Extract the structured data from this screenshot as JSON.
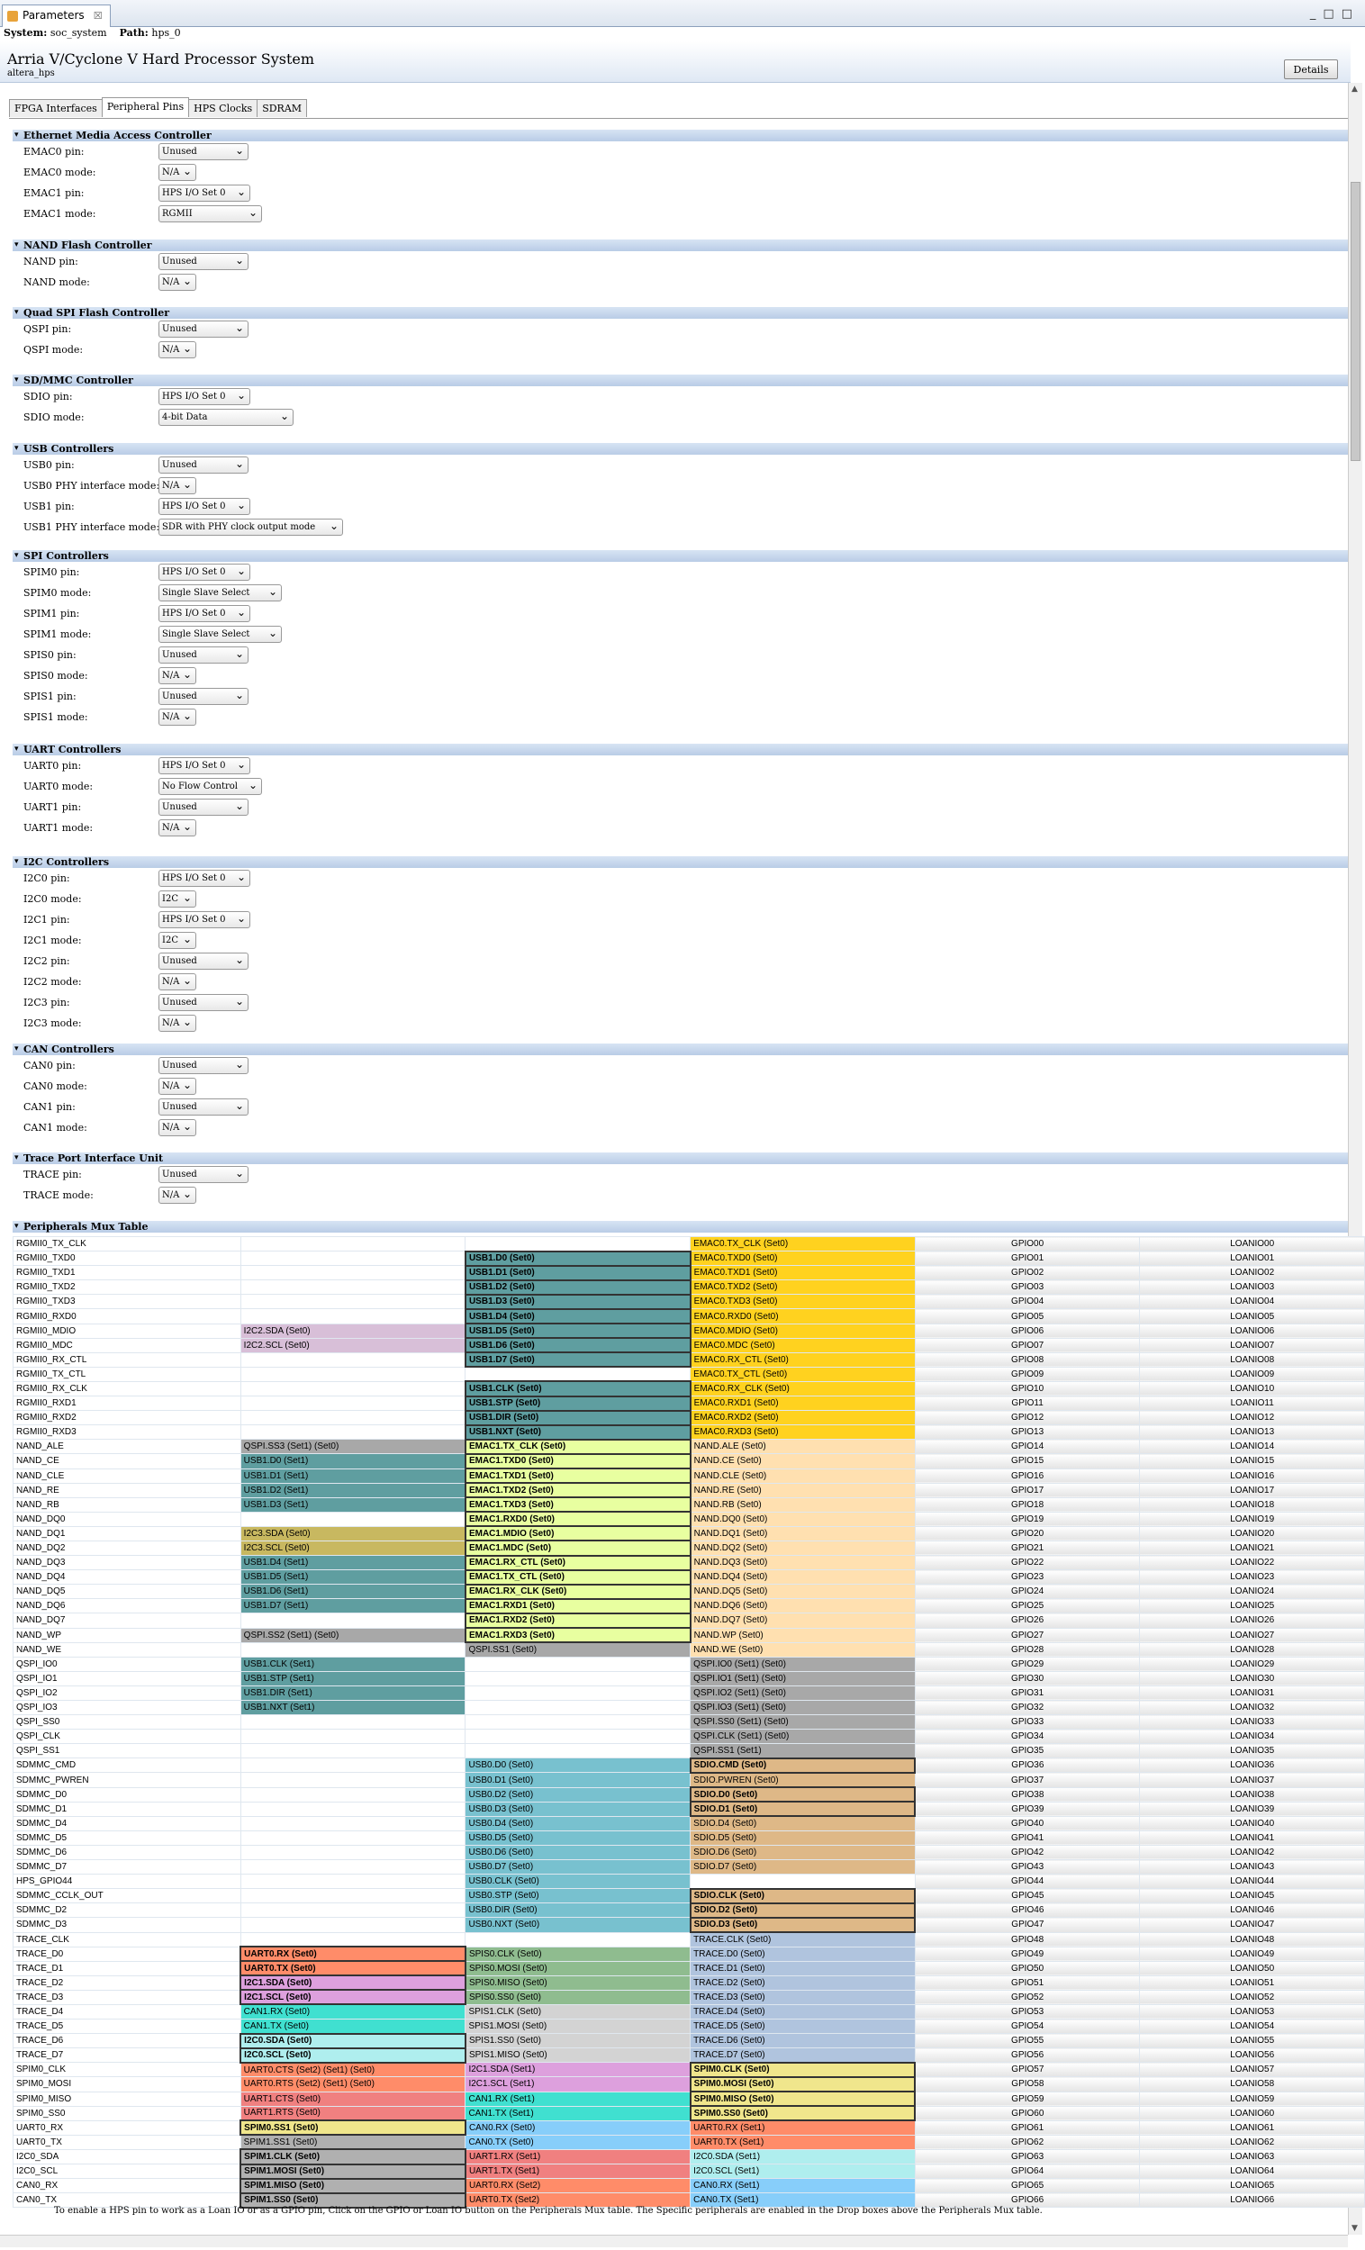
{
  "window": {
    "tab": "Parameters",
    "tab_close": "☒"
  },
  "path": {
    "system_label": "System:",
    "system": "soc_system",
    "path_label": "Path:",
    "path": "hps_0"
  },
  "header": {
    "title": "Arria V/Cyclone V Hard Processor System",
    "subtitle": "altera_hps",
    "details": "Details"
  },
  "tabs": [
    "FPGA Interfaces",
    "Peripheral Pins",
    "HPS Clocks",
    "SDRAM"
  ],
  "sections": [
    {
      "title": "Ethernet Media Access Controller",
      "fields": [
        [
          "EMAC0 pin:",
          "Unused",
          100
        ],
        [
          "EMAC0 mode:",
          "N/A",
          42
        ],
        [
          "EMAC1 pin:",
          "HPS I/O Set 0",
          102
        ],
        [
          "EMAC1 mode:",
          "RGMII",
          115
        ]
      ]
    },
    {
      "title": "NAND Flash Controller",
      "fields": [
        [
          "NAND pin:",
          "Unused",
          100
        ],
        [
          "NAND mode:",
          "N/A",
          42
        ]
      ]
    },
    {
      "title": "Quad SPI Flash Controller",
      "fields": [
        [
          "QSPI pin:",
          "Unused",
          100
        ],
        [
          "QSPI mode:",
          "N/A",
          42
        ]
      ]
    },
    {
      "title": "SD/MMC Controller",
      "fields": [
        [
          "SDIO pin:",
          "HPS I/O Set 0",
          102
        ],
        [
          "SDIO mode:",
          "4-bit Data",
          150
        ]
      ]
    },
    {
      "title": "USB Controllers",
      "fields": [
        [
          "USB0 pin:",
          "Unused",
          100
        ],
        [
          "USB0 PHY interface mode:",
          "N/A",
          42
        ],
        [
          "USB1 pin:",
          "HPS I/O Set 0",
          102
        ],
        [
          "USB1 PHY interface mode:",
          "SDR with PHY clock output mode",
          205
        ]
      ]
    },
    {
      "title": "SPI Controllers",
      "fields": [
        [
          "SPIM0 pin:",
          "HPS I/O Set 0",
          102
        ],
        [
          "SPIM0 mode:",
          "Single Slave Select",
          137
        ],
        [
          "SPIM1 pin:",
          "HPS I/O Set 0",
          102
        ],
        [
          "SPIM1 mode:",
          "Single Slave Select",
          137
        ],
        [
          "SPIS0 pin:",
          "Unused",
          100
        ],
        [
          "SPIS0 mode:",
          "N/A",
          42
        ],
        [
          "SPIS1 pin:",
          "Unused",
          100
        ],
        [
          "SPIS1 mode:",
          "N/A",
          42
        ]
      ]
    },
    {
      "title": "UART Controllers",
      "fields": [
        [
          "UART0 pin:",
          "HPS I/O Set 0",
          102
        ],
        [
          "UART0 mode:",
          "No Flow Control",
          115
        ],
        [
          "UART1 pin:",
          "Unused",
          100
        ],
        [
          "UART1 mode:",
          "N/A",
          42
        ]
      ]
    },
    {
      "title": "I2C Controllers",
      "fields": [
        [
          "I2C0 pin:",
          "HPS I/O Set 0",
          102
        ],
        [
          "I2C0 mode:",
          "I2C",
          42
        ],
        [
          "I2C1 pin:",
          "HPS I/O Set 0",
          102
        ],
        [
          "I2C1 mode:",
          "I2C",
          42
        ],
        [
          "I2C2 pin:",
          "Unused",
          100
        ],
        [
          "I2C2 mode:",
          "N/A",
          42
        ],
        [
          "I2C3 pin:",
          "Unused",
          100
        ],
        [
          "I2C3 mode:",
          "N/A",
          42
        ]
      ]
    },
    {
      "title": "CAN Controllers",
      "fields": [
        [
          "CAN0 pin:",
          "Unused",
          100
        ],
        [
          "CAN0 mode:",
          "N/A",
          42
        ],
        [
          "CAN1 pin:",
          "Unused",
          100
        ],
        [
          "CAN1 mode:",
          "N/A",
          42
        ]
      ]
    },
    {
      "title": "Trace Port Interface Unit",
      "fields": [
        [
          "TRACE pin:",
          "Unused",
          100
        ],
        [
          "TRACE mode:",
          "N/A",
          42
        ]
      ]
    }
  ],
  "mux_title": "Peripherals Mux Table",
  "mux_rows": [
    [
      "RGMII0_TX_CLK",
      "",
      "",
      "EMAC0.TX_CLK (Set0)",
      "GPIO00",
      "LOANIO00"
    ],
    [
      "RGMII0_TXD0",
      "",
      "USB1.D0 (Set0)",
      "EMAC0.TXD0 (Set0)",
      "GPIO01",
      "LOANIO01"
    ],
    [
      "RGMII0_TXD1",
      "",
      "USB1.D1 (Set0)",
      "EMAC0.TXD1 (Set0)",
      "GPIO02",
      "LOANIO02"
    ],
    [
      "RGMII0_TXD2",
      "",
      "USB1.D2 (Set0)",
      "EMAC0.TXD2 (Set0)",
      "GPIO03",
      "LOANIO03"
    ],
    [
      "RGMII0_TXD3",
      "",
      "USB1.D3 (Set0)",
      "EMAC0.TXD3 (Set0)",
      "GPIO04",
      "LOANIO04"
    ],
    [
      "RGMII0_RXD0",
      "",
      "USB1.D4 (Set0)",
      "EMAC0.RXD0 (Set0)",
      "GPIO05",
      "LOANIO05"
    ],
    [
      "RGMII0_MDIO",
      "I2C2.SDA (Set0)",
      "USB1.D5 (Set0)",
      "EMAC0.MDIO (Set0)",
      "GPIO06",
      "LOANIO06"
    ],
    [
      "RGMII0_MDC",
      "I2C2.SCL (Set0)",
      "USB1.D6 (Set0)",
      "EMAC0.MDC (Set0)",
      "GPIO07",
      "LOANIO07"
    ],
    [
      "RGMII0_RX_CTL",
      "",
      "USB1.D7 (Set0)",
      "EMAC0.RX_CTL (Set0)",
      "GPIO08",
      "LOANIO08"
    ],
    [
      "RGMII0_TX_CTL",
      "",
      "",
      "EMAC0.TX_CTL (Set0)",
      "GPIO09",
      "LOANIO09"
    ],
    [
      "RGMII0_RX_CLK",
      "",
      "USB1.CLK (Set0)",
      "EMAC0.RX_CLK (Set0)",
      "GPIO10",
      "LOANIO10"
    ],
    [
      "RGMII0_RXD1",
      "",
      "USB1.STP (Set0)",
      "EMAC0.RXD1 (Set0)",
      "GPIO11",
      "LOANIO11"
    ],
    [
      "RGMII0_RXD2",
      "",
      "USB1.DIR (Set0)",
      "EMAC0.RXD2 (Set0)",
      "GPIO12",
      "LOANIO12"
    ],
    [
      "RGMII0_RXD3",
      "",
      "USB1.NXT (Set0)",
      "EMAC0.RXD3 (Set0)",
      "GPIO13",
      "LOANIO13"
    ],
    [
      "NAND_ALE",
      "QSPI.SS3 (Set1) (Set0)",
      "EMAC1.TX_CLK (Set0)",
      "NAND.ALE (Set0)",
      "GPIO14",
      "LOANIO14"
    ],
    [
      "NAND_CE",
      "USB1.D0 (Set1)",
      "EMAC1.TXD0 (Set0)",
      "NAND.CE (Set0)",
      "GPIO15",
      "LOANIO15"
    ],
    [
      "NAND_CLE",
      "USB1.D1 (Set1)",
      "EMAC1.TXD1 (Set0)",
      "NAND.CLE (Set0)",
      "GPIO16",
      "LOANIO16"
    ],
    [
      "NAND_RE",
      "USB1.D2 (Set1)",
      "EMAC1.TXD2 (Set0)",
      "NAND.RE (Set0)",
      "GPIO17",
      "LOANIO17"
    ],
    [
      "NAND_RB",
      "USB1.D3 (Set1)",
      "EMAC1.TXD3 (Set0)",
      "NAND.RB (Set0)",
      "GPIO18",
      "LOANIO18"
    ],
    [
      "NAND_DQ0",
      "",
      "EMAC1.RXD0 (Set0)",
      "NAND.DQ0 (Set0)",
      "GPIO19",
      "LOANIO19"
    ],
    [
      "NAND_DQ1",
      "I2C3.SDA (Set0)",
      "EMAC1.MDIO (Set0)",
      "NAND.DQ1 (Set0)",
      "GPIO20",
      "LOANIO20"
    ],
    [
      "NAND_DQ2",
      "I2C3.SCL (Set0)",
      "EMAC1.MDC (Set0)",
      "NAND.DQ2 (Set0)",
      "GPIO21",
      "LOANIO21"
    ],
    [
      "NAND_DQ3",
      "USB1.D4 (Set1)",
      "EMAC1.RX_CTL (Set0)",
      "NAND.DQ3 (Set0)",
      "GPIO22",
      "LOANIO22"
    ],
    [
      "NAND_DQ4",
      "USB1.D5 (Set1)",
      "EMAC1.TX_CTL (Set0)",
      "NAND.DQ4 (Set0)",
      "GPIO23",
      "LOANIO23"
    ],
    [
      "NAND_DQ5",
      "USB1.D6 (Set1)",
      "EMAC1.RX_CLK (Set0)",
      "NAND.DQ5 (Set0)",
      "GPIO24",
      "LOANIO24"
    ],
    [
      "NAND_DQ6",
      "USB1.D7 (Set1)",
      "EMAC1.RXD1 (Set0)",
      "NAND.DQ6 (Set0)",
      "GPIO25",
      "LOANIO25"
    ],
    [
      "NAND_DQ7",
      "",
      "EMAC1.RXD2 (Set0)",
      "NAND.DQ7 (Set0)",
      "GPIO26",
      "LOANIO26"
    ],
    [
      "NAND_WP",
      "QSPI.SS2 (Set1) (Set0)",
      "EMAC1.RXD3 (Set0)",
      "NAND.WP (Set0)",
      "GPIO27",
      "LOANIO27"
    ],
    [
      "NAND_WE",
      "",
      "QSPI.SS1 (Set0)",
      "NAND.WE (Set0)",
      "GPIO28",
      "LOANIO28"
    ],
    [
      "QSPI_IO0",
      "USB1.CLK (Set1)",
      "",
      "QSPI.IO0 (Set1) (Set0)",
      "GPIO29",
      "LOANIO29"
    ],
    [
      "QSPI_IO1",
      "USB1.STP (Set1)",
      "",
      "QSPI.IO1 (Set1) (Set0)",
      "GPIO30",
      "LOANIO30"
    ],
    [
      "QSPI_IO2",
      "USB1.DIR (Set1)",
      "",
      "QSPI.IO2 (Set1) (Set0)",
      "GPIO31",
      "LOANIO31"
    ],
    [
      "QSPI_IO3",
      "USB1.NXT (Set1)",
      "",
      "QSPI.IO3 (Set1) (Set0)",
      "GPIO32",
      "LOANIO32"
    ],
    [
      "QSPI_SS0",
      "",
      "",
      "QSPI.SS0 (Set1) (Set0)",
      "GPIO33",
      "LOANIO33"
    ],
    [
      "QSPI_CLK",
      "",
      "",
      "QSPI.CLK (Set1) (Set0)",
      "GPIO34",
      "LOANIO34"
    ],
    [
      "QSPI_SS1",
      "",
      "",
      "QSPI.SS1 (Set1)",
      "GPIO35",
      "LOANIO35"
    ],
    [
      "SDMMC_CMD",
      "",
      "USB0.D0 (Set0)",
      "SDIO.CMD (Set0)",
      "GPIO36",
      "LOANIO36"
    ],
    [
      "SDMMC_PWREN",
      "",
      "USB0.D1 (Set0)",
      "SDIO.PWREN (Set0)",
      "GPIO37",
      "LOANIO37"
    ],
    [
      "SDMMC_D0",
      "",
      "USB0.D2 (Set0)",
      "SDIO.D0 (Set0)",
      "GPIO38",
      "LOANIO38"
    ],
    [
      "SDMMC_D1",
      "",
      "USB0.D3 (Set0)",
      "SDIO.D1 (Set0)",
      "GPIO39",
      "LOANIO39"
    ],
    [
      "SDMMC_D4",
      "",
      "USB0.D4 (Set0)",
      "SDIO.D4 (Set0)",
      "GPIO40",
      "LOANIO40"
    ],
    [
      "SDMMC_D5",
      "",
      "USB0.D5 (Set0)",
      "SDIO.D5 (Set0)",
      "GPIO41",
      "LOANIO41"
    ],
    [
      "SDMMC_D6",
      "",
      "USB0.D6 (Set0)",
      "SDIO.D6 (Set0)",
      "GPIO42",
      "LOANIO42"
    ],
    [
      "SDMMC_D7",
      "",
      "USB0.D7 (Set0)",
      "SDIO.D7 (Set0)",
      "GPIO43",
      "LOANIO43"
    ],
    [
      "HPS_GPIO44",
      "",
      "USB0.CLK (Set0)",
      "",
      "GPIO44",
      "LOANIO44"
    ],
    [
      "SDMMC_CCLK_OUT",
      "",
      "USB0.STP (Set0)",
      "SDIO.CLK (Set0)",
      "GPIO45",
      "LOANIO45"
    ],
    [
      "SDMMC_D2",
      "",
      "USB0.DIR (Set0)",
      "SDIO.D2 (Set0)",
      "GPIO46",
      "LOANIO46"
    ],
    [
      "SDMMC_D3",
      "",
      "USB0.NXT (Set0)",
      "SDIO.D3 (Set0)",
      "GPIO47",
      "LOANIO47"
    ],
    [
      "TRACE_CLK",
      "",
      "",
      "TRACE.CLK (Set0)",
      "GPIO48",
      "LOANIO48"
    ],
    [
      "TRACE_D0",
      "UART0.RX (Set0)",
      "SPIS0.CLK (Set0)",
      "TRACE.D0 (Set0)",
      "GPIO49",
      "LOANIO49"
    ],
    [
      "TRACE_D1",
      "UART0.TX (Set0)",
      "SPIS0.MOSI (Set0)",
      "TRACE.D1 (Set0)",
      "GPIO50",
      "LOANIO50"
    ],
    [
      "TRACE_D2",
      "I2C1.SDA (Set0)",
      "SPIS0.MISO (Set0)",
      "TRACE.D2 (Set0)",
      "GPIO51",
      "LOANIO51"
    ],
    [
      "TRACE_D3",
      "I2C1.SCL (Set0)",
      "SPIS0.SS0 (Set0)",
      "TRACE.D3 (Set0)",
      "GPIO52",
      "LOANIO52"
    ],
    [
      "TRACE_D4",
      "CAN1.RX (Set0)",
      "SPIS1.CLK (Set0)",
      "TRACE.D4 (Set0)",
      "GPIO53",
      "LOANIO53"
    ],
    [
      "TRACE_D5",
      "CAN1.TX (Set0)",
      "SPIS1.MOSI (Set0)",
      "TRACE.D5 (Set0)",
      "GPIO54",
      "LOANIO54"
    ],
    [
      "TRACE_D6",
      "I2C0.SDA (Set0)",
      "SPIS1.SS0 (Set0)",
      "TRACE.D6 (Set0)",
      "GPIO55",
      "LOANIO55"
    ],
    [
      "TRACE_D7",
      "I2C0.SCL (Set0)",
      "SPIS1.MISO (Set0)",
      "TRACE.D7 (Set0)",
      "GPIO56",
      "LOANIO56"
    ],
    [
      "SPIM0_CLK",
      "UART0.CTS (Set2) (Set1) (Set0)",
      "I2C1.SDA (Set1)",
      "SPIM0.CLK (Set0)",
      "GPIO57",
      "LOANIO57"
    ],
    [
      "SPIM0_MOSI",
      "UART0.RTS (Set2) (Set1) (Set0)",
      "I2C1.SCL (Set1)",
      "SPIM0.MOSI (Set0)",
      "GPIO58",
      "LOANIO58"
    ],
    [
      "SPIM0_MISO",
      "UART1.CTS (Set0)",
      "CAN1.RX (Set1)",
      "SPIM0.MISO (Set0)",
      "GPIO59",
      "LOANIO59"
    ],
    [
      "SPIM0_SS0",
      "UART1.RTS (Set0)",
      "CAN1.TX (Set1)",
      "SPIM0.SS0 (Set0)",
      "GPIO60",
      "LOANIO60"
    ],
    [
      "UART0_RX",
      "SPIM0.SS1 (Set0)",
      "CAN0.RX (Set0)",
      "UART0.RX (Set1)",
      "GPIO61",
      "LOANIO61"
    ],
    [
      "UART0_TX",
      "SPIM1.SS1 (Set0)",
      "CAN0.TX (Set0)",
      "UART0.TX (Set1)",
      "GPIO62",
      "LOANIO62"
    ],
    [
      "I2C0_SDA",
      "SPIM1.CLK (Set0)",
      "UART1.RX (Set1)",
      "I2C0.SDA (Set1)",
      "GPIO63",
      "LOANIO63"
    ],
    [
      "I2C0_SCL",
      "SPIM1.MOSI (Set0)",
      "UART1.TX (Set1)",
      "I2C0.SCL (Set1)",
      "GPIO64",
      "LOANIO64"
    ],
    [
      "CAN0_RX",
      "SPIM1.MISO (Set0)",
      "UART0.RX (Set2)",
      "CAN0.RX (Set1)",
      "GPIO65",
      "LOANIO65"
    ],
    [
      "CAN0_TX",
      "SPIM1.SS0 (Set0)",
      "UART0.TX (Set2)",
      "CAN0.TX (Set1)",
      "GPIO66",
      "LOANIO66"
    ]
  ],
  "footer": "To enable a HPS pin to work as a Loan IO or as a GPIO pin, Click on the GPIO or Loan IO button on the Peripherals Mux table. The Specific peripherals are enabled in the Drop boxes above the Peripherals Mux table."
}
